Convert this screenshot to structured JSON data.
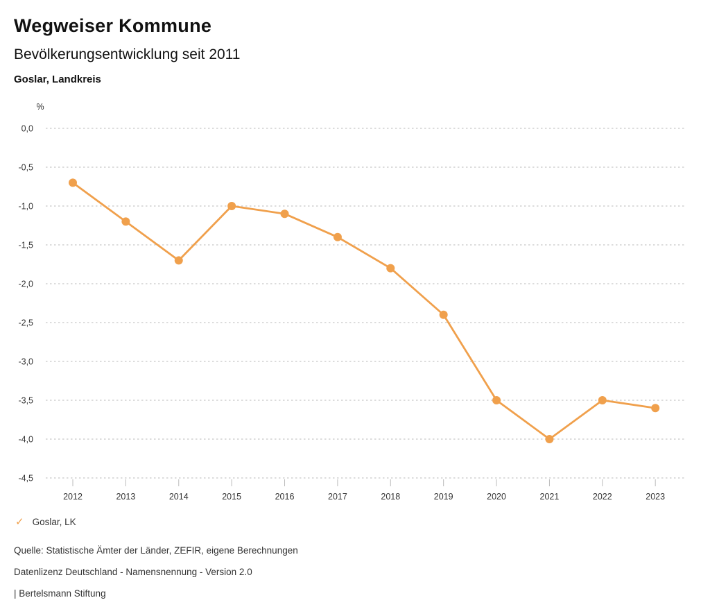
{
  "header": {
    "title": "Wegweiser Kommune",
    "subtitle": "Bevölkerungsentwicklung seit 2011",
    "region": "Goslar, Landkreis"
  },
  "chart_data": {
    "type": "line",
    "title": "Bevölkerungsentwicklung seit 2011",
    "unit_label": "%",
    "x": [
      2012,
      2013,
      2014,
      2015,
      2016,
      2017,
      2018,
      2019,
      2020,
      2021,
      2022,
      2023
    ],
    "series": [
      {
        "name": "Goslar, LK",
        "values": [
          -0.7,
          -1.2,
          -1.7,
          -1.0,
          -1.1,
          -1.4,
          -1.8,
          -2.4,
          -3.5,
          -4.0,
          -3.5,
          -3.6
        ],
        "color": "#F0A04C"
      }
    ],
    "ylim": [
      -4.5,
      0.0
    ],
    "ytick_step": 0.5,
    "ytick_labels": [
      "0,0",
      "-0,5",
      "-1,0",
      "-1,5",
      "-2,0",
      "-2,5",
      "-3,0",
      "-3,5",
      "-4,0",
      "-4,5"
    ],
    "xtick_labels": [
      "2012",
      "2013",
      "2014",
      "2015",
      "2016",
      "2017",
      "2018",
      "2019",
      "2020",
      "2021",
      "2022",
      "2023"
    ],
    "grid": "horizontal-dotted",
    "legend_position": "bottom-left"
  },
  "legend": {
    "check_glyph": "✓",
    "label": "Goslar, LK"
  },
  "footer": {
    "source": "Quelle: Statistische Ämter der Länder, ZEFIR, eigene Berechnungen",
    "license": "Datenlizenz Deutschland - Namensnennung - Version 2.0",
    "attribution": "| Bertelsmann Stiftung"
  },
  "colors": {
    "accent": "#F0A04C",
    "grid": "#c8c8c8",
    "tick": "#bbbbbb",
    "axis_text": "#333333",
    "heading_text": "#111111"
  }
}
